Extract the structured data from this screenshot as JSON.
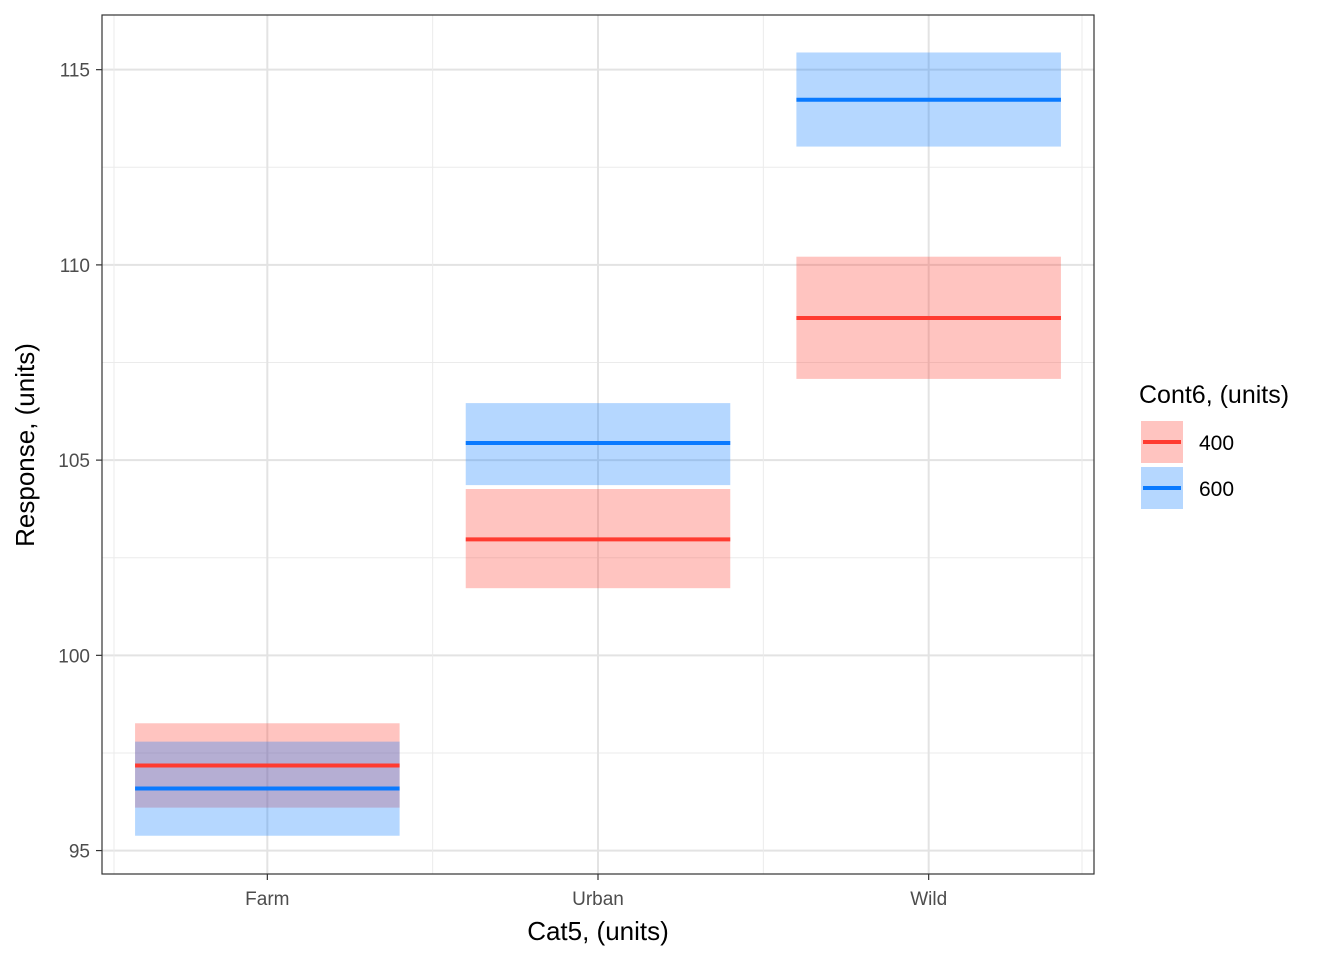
{
  "chart_data": {
    "type": "crossbar",
    "xlabel": "Cat5, (units)",
    "ylabel": "Response, (units)",
    "categories": [
      "Farm",
      "Urban",
      "Wild"
    ],
    "ylim": [
      94.4,
      116.4
    ],
    "yticks": [
      95,
      100,
      105,
      110,
      115
    ],
    "grid": true,
    "legend": {
      "title": "Cont6, (units)",
      "placement": "right"
    },
    "colors": {
      "400": "#FF3B30",
      "600": "#0A7AFF"
    },
    "series": [
      {
        "name": "400",
        "mean": [
          97.18,
          102.97,
          108.64
        ],
        "lower": [
          96.1,
          101.72,
          107.08
        ],
        "upper": [
          98.26,
          104.26,
          110.21
        ]
      },
      {
        "name": "600",
        "mean": [
          96.59,
          105.44,
          114.23
        ],
        "lower": [
          95.38,
          104.36,
          113.03
        ],
        "upper": [
          97.79,
          106.46,
          115.44
        ]
      }
    ]
  }
}
